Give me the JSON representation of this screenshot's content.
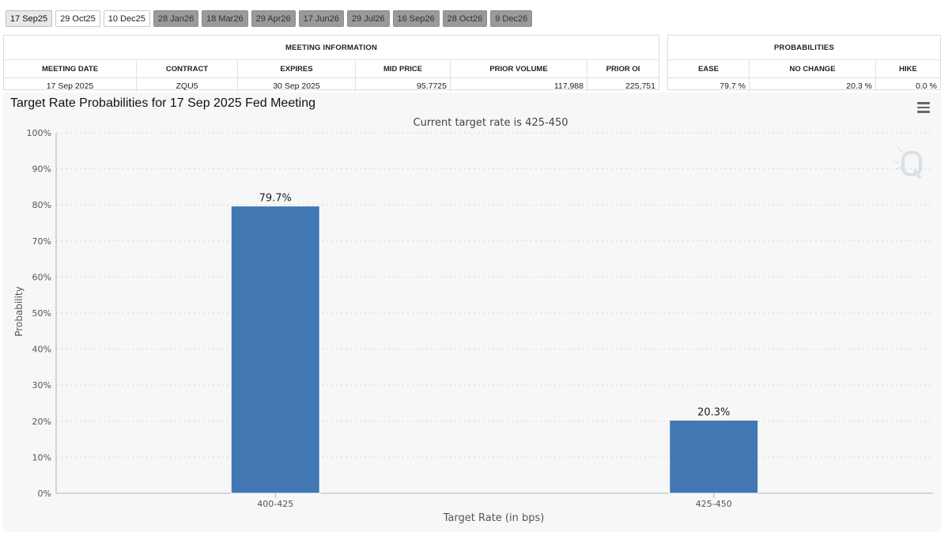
{
  "tabs": [
    {
      "label": "17 Sep25",
      "state": "active"
    },
    {
      "label": "29 Oct25",
      "state": "normal"
    },
    {
      "label": "10 Dec25",
      "state": "normal"
    },
    {
      "label": "28 Jan26",
      "state": "future"
    },
    {
      "label": "18 Mar26",
      "state": "future"
    },
    {
      "label": "29 Apr26",
      "state": "future"
    },
    {
      "label": "17 Jun26",
      "state": "future"
    },
    {
      "label": "29 Jul26",
      "state": "future"
    },
    {
      "label": "16 Sep26",
      "state": "future"
    },
    {
      "label": "28 Oct26",
      "state": "future"
    },
    {
      "label": "9 Dec26",
      "state": "future"
    }
  ],
  "meeting_info": {
    "title": "MEETING INFORMATION",
    "headers": [
      "MEETING DATE",
      "CONTRACT",
      "EXPIRES",
      "MID PRICE",
      "PRIOR VOLUME",
      "PRIOR OI"
    ],
    "row": [
      "17 Sep 2025",
      "ZQU5",
      "30 Sep 2025",
      "95.7725",
      "117,988",
      "225,751"
    ]
  },
  "probabilities": {
    "title": "PROBABILITIES",
    "headers": [
      "EASE",
      "NO CHANGE",
      "HIKE"
    ],
    "row": [
      "79.7 %",
      "20.3 %",
      "0.0 %"
    ]
  },
  "chart_title": "Target Rate Probabilities for 17 Sep 2025 Fed Meeting",
  "chart_data": {
    "type": "bar",
    "title": "Target Rate Probabilities for 17 Sep 2025 Fed Meeting",
    "subtitle": "Current target rate is 425-450",
    "xlabel": "Target Rate (in bps)",
    "ylabel": "Probability",
    "categories": [
      "400-425",
      "425-450"
    ],
    "values": [
      79.7,
      20.3
    ],
    "data_labels": [
      "79.7%",
      "20.3%"
    ],
    "ylim": [
      0,
      100
    ],
    "yticks": [
      "0%",
      "10%",
      "20%",
      "30%",
      "40%",
      "50%",
      "60%",
      "70%",
      "80%",
      "90%",
      "100%"
    ],
    "grid": true,
    "legend": "none",
    "bar_color": "#4178b4"
  }
}
